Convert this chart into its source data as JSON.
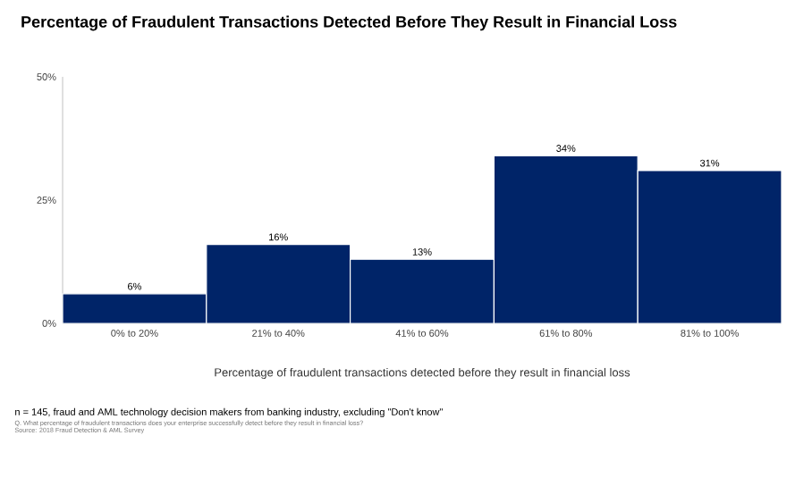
{
  "chart_data": {
    "type": "bar",
    "title": "Percentage of Fraudulent Transactions Detected Before They Result in Financial Loss",
    "xlabel": "Percentage of fraudulent transactions detected before they result in financial loss",
    "categories": [
      "0% to 20%",
      "21% to 40%",
      "41% to 60%",
      "61% to 80%",
      "81% to 100%"
    ],
    "values": [
      6,
      16,
      13,
      34,
      31
    ],
    "value_labels": [
      "6%",
      "16%",
      "13%",
      "34%",
      "31%"
    ],
    "color": "#002468",
    "ylim": [
      0,
      50
    ],
    "yticks": [
      {
        "value": 0,
        "label": "0%"
      },
      {
        "value": 25,
        "label": "25%"
      },
      {
        "value": 50,
        "label": "50%"
      }
    ],
    "annotations": [
      "n = 145, fraud and AML technology decision makers from banking industry, excluding \"Don't know\"",
      "Q. What percentage of fraudulent transactions does your enterprise successfully detect before they result in financial loss?",
      "Source: 2018 Fraud Detection & AML Survey"
    ]
  }
}
